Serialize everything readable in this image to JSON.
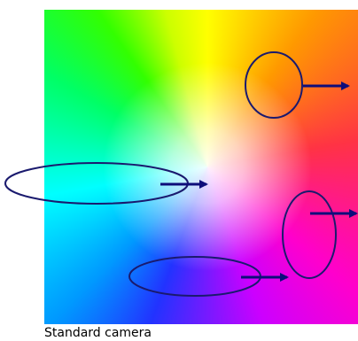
{
  "caption": "Standard camera",
  "colors": {
    "outline": "#1a1a6e",
    "arrow": "#0d0d7a"
  },
  "markers": [
    {
      "id": "top-right",
      "shape": "ellipse",
      "arrow": "right"
    },
    {
      "id": "left",
      "shape": "ellipse",
      "arrow": "right"
    },
    {
      "id": "right",
      "shape": "ellipse",
      "arrow": "right"
    },
    {
      "id": "bottom",
      "shape": "ellipse",
      "arrow": "right"
    }
  ]
}
